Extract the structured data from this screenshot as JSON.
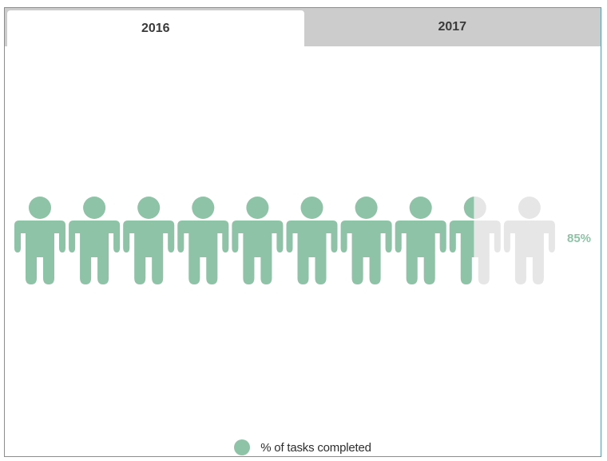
{
  "tabs": [
    {
      "label": "2016",
      "active": true
    },
    {
      "label": "2017",
      "active": false
    }
  ],
  "colors": {
    "filled": "#8fc3a7",
    "empty": "#e6e6e6",
    "tab_inactive": "#cccccc",
    "border": "#5aa0b0"
  },
  "chart_data": {
    "type": "pictogram",
    "icon": "person-icon",
    "icon_count": 10,
    "value": 85,
    "value_label": "85%",
    "legend": [
      {
        "label": "% of tasks completed",
        "color": "#8fc3a7"
      }
    ]
  }
}
